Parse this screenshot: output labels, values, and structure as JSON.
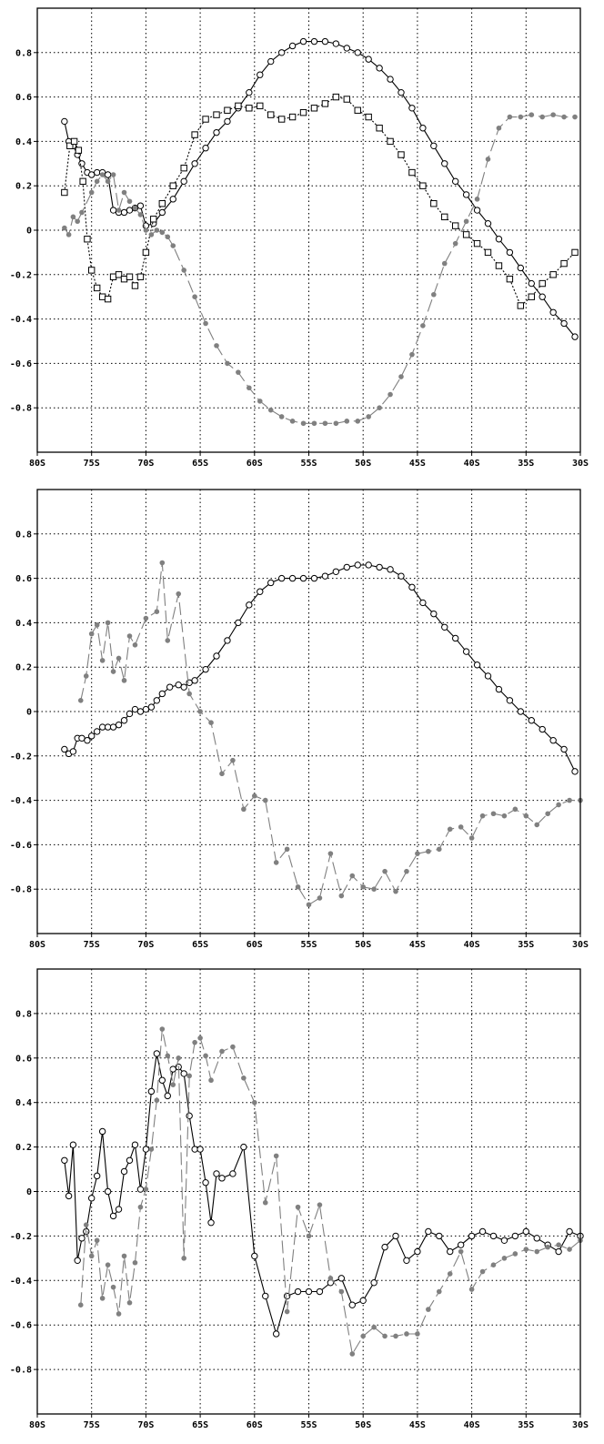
{
  "chart_data": [
    {
      "type": "line",
      "grid": true,
      "xlim": [
        -80,
        -30
      ],
      "ylim": [
        -1.0,
        1.0
      ],
      "x_ticks": [
        "80S",
        "75S",
        "70S",
        "65S",
        "60S",
        "55S",
        "50S",
        "45S",
        "40S",
        "35S",
        "30S"
      ],
      "y_ticks": [
        "0.8",
        "0.6",
        "0.4",
        "0.2",
        "0",
        "-0.2",
        "-0.4",
        "-0.6",
        "-0.8"
      ],
      "series": [
        {
          "style": "solid-open-circle",
          "color": "#000000",
          "x": [
            -77.5,
            -77.1,
            -76.7,
            -76.3,
            -75.9,
            -75.4,
            -75.0,
            -74.5,
            -74.0,
            -73.5,
            -73.0,
            -72.5,
            -72.0,
            -71.5,
            -71.0,
            -70.5,
            -70.0,
            -69.3,
            -68.5,
            -67.5,
            -66.5,
            -65.5,
            -64.5,
            -63.5,
            -62.5,
            -61.5,
            -60.5,
            -59.5,
            -58.5,
            -57.5,
            -56.5,
            -55.5,
            -54.5,
            -53.5,
            -52.5,
            -51.5,
            -50.5,
            -49.5,
            -48.5,
            -47.5,
            -46.5,
            -45.5,
            -44.5,
            -43.5,
            -42.5,
            -41.5,
            -40.5,
            -39.5,
            -38.5,
            -37.5,
            -36.5,
            -35.5,
            -34.5,
            -33.5,
            -32.5,
            -31.5,
            -30.5
          ],
          "y": [
            0.49,
            0.4,
            0.38,
            0.34,
            0.3,
            0.26,
            0.25,
            0.26,
            0.26,
            0.25,
            0.09,
            0.08,
            0.08,
            0.09,
            0.1,
            0.11,
            0.02,
            0.03,
            0.08,
            0.14,
            0.22,
            0.3,
            0.37,
            0.44,
            0.49,
            0.55,
            0.62,
            0.7,
            0.76,
            0.8,
            0.83,
            0.85,
            0.85,
            0.85,
            0.84,
            0.82,
            0.8,
            0.77,
            0.73,
            0.68,
            0.62,
            0.55,
            0.46,
            0.38,
            0.3,
            0.22,
            0.16,
            0.09,
            0.03,
            -0.04,
            -0.1,
            -0.17,
            -0.24,
            -0.3,
            -0.37,
            -0.42,
            -0.48
          ]
        },
        {
          "style": "dotted-open-square",
          "color": "#000000",
          "x": [
            -77.5,
            -77.0,
            -76.6,
            -76.2,
            -75.8,
            -75.4,
            -75.0,
            -74.5,
            -74.0,
            -73.5,
            -73.0,
            -72.5,
            -72.0,
            -71.5,
            -71.0,
            -70.5,
            -70.0,
            -69.3,
            -68.5,
            -67.5,
            -66.5,
            -65.5,
            -64.5,
            -63.5,
            -62.5,
            -61.5,
            -60.5,
            -59.5,
            -58.5,
            -57.5,
            -56.5,
            -55.5,
            -54.5,
            -53.5,
            -52.5,
            -51.5,
            -50.5,
            -49.5,
            -48.5,
            -47.5,
            -46.5,
            -45.5,
            -44.5,
            -43.5,
            -42.5,
            -41.5,
            -40.5,
            -39.5,
            -38.5,
            -37.5,
            -36.5,
            -35.5,
            -34.5,
            -33.5,
            -32.5,
            -31.5,
            -30.5
          ],
          "y": [
            0.17,
            0.38,
            0.4,
            0.36,
            0.22,
            -0.04,
            -0.18,
            -0.26,
            -0.3,
            -0.31,
            -0.21,
            -0.2,
            -0.22,
            -0.21,
            -0.25,
            -0.21,
            -0.1,
            0.05,
            0.12,
            0.2,
            0.28,
            0.43,
            0.5,
            0.52,
            0.54,
            0.56,
            0.55,
            0.56,
            0.52,
            0.5,
            0.51,
            0.53,
            0.55,
            0.57,
            0.6,
            0.59,
            0.54,
            0.51,
            0.46,
            0.4,
            0.34,
            0.26,
            0.2,
            0.12,
            0.06,
            0.02,
            -0.02,
            -0.06,
            -0.1,
            -0.16,
            -0.22,
            -0.34,
            -0.3,
            -0.24,
            -0.2,
            -0.15,
            -0.1
          ]
        },
        {
          "style": "dashed-filled-circle",
          "color": "#808080",
          "x": [
            -77.5,
            -77.1,
            -76.7,
            -76.3,
            -75.9,
            -75.0,
            -74.5,
            -74.0,
            -73.5,
            -73.0,
            -72.5,
            -72.0,
            -71.5,
            -71.0,
            -70.5,
            -70.0,
            -69.5,
            -69.0,
            -68.5,
            -68.0,
            -67.5,
            -66.5,
            -65.5,
            -64.5,
            -63.5,
            -62.5,
            -61.5,
            -60.5,
            -59.5,
            -58.5,
            -57.5,
            -56.5,
            -55.5,
            -54.5,
            -53.5,
            -52.5,
            -51.5,
            -50.5,
            -49.5,
            -48.5,
            -47.5,
            -46.5,
            -45.5,
            -44.5,
            -43.5,
            -42.5,
            -41.5,
            -40.5,
            -39.5,
            -38.5,
            -37.5,
            -36.5,
            -35.5,
            -34.5,
            -33.5,
            -32.5,
            -31.5,
            -30.5
          ],
          "y": [
            0.01,
            -0.02,
            0.06,
            0.04,
            0.08,
            0.17,
            0.22,
            0.25,
            0.22,
            0.25,
            0.09,
            0.17,
            0.13,
            0.1,
            0.07,
            0.0,
            -0.02,
            0.0,
            -0.01,
            -0.03,
            -0.07,
            -0.18,
            -0.3,
            -0.42,
            -0.52,
            -0.6,
            -0.64,
            -0.71,
            -0.77,
            -0.81,
            -0.84,
            -0.86,
            -0.87,
            -0.87,
            -0.87,
            -0.87,
            -0.86,
            -0.86,
            -0.84,
            -0.8,
            -0.74,
            -0.66,
            -0.56,
            -0.43,
            -0.29,
            -0.15,
            -0.06,
            0.04,
            0.14,
            0.32,
            0.46,
            0.51,
            0.51,
            0.52,
            0.51,
            0.52,
            0.51,
            0.51
          ]
        }
      ]
    },
    {
      "type": "line",
      "grid": true,
      "xlim": [
        -80,
        -30
      ],
      "ylim": [
        -1.0,
        1.0
      ],
      "x_ticks": [
        "80S",
        "75S",
        "70S",
        "65S",
        "60S",
        "55S",
        "50S",
        "45S",
        "40S",
        "35S",
        "30S"
      ],
      "y_ticks": [
        "0.8",
        "0.6",
        "0.4",
        "0.2",
        "0",
        "-0.2",
        "-0.4",
        "-0.6",
        "-0.8"
      ],
      "series": [
        {
          "style": "solid-open-circle",
          "color": "#000000",
          "x": [
            -77.5,
            -77.1,
            -76.7,
            -76.3,
            -75.9,
            -75.4,
            -75.0,
            -74.5,
            -74.0,
            -73.5,
            -73.0,
            -72.5,
            -72.0,
            -71.5,
            -71.0,
            -70.5,
            -70.0,
            -69.5,
            -69.0,
            -68.5,
            -67.8,
            -67.0,
            -66.5,
            -66.0,
            -65.5,
            -64.5,
            -63.5,
            -62.5,
            -61.5,
            -60.5,
            -59.5,
            -58.5,
            -57.5,
            -56.5,
            -55.5,
            -54.5,
            -53.5,
            -52.5,
            -51.5,
            -50.5,
            -49.5,
            -48.5,
            -47.5,
            -46.5,
            -45.5,
            -44.5,
            -43.5,
            -42.5,
            -41.5,
            -40.5,
            -39.5,
            -38.5,
            -37.5,
            -36.5,
            -35.5,
            -34.5,
            -33.5,
            -32.5,
            -31.5,
            -30.5
          ],
          "y": [
            -0.17,
            -0.19,
            -0.18,
            -0.12,
            -0.12,
            -0.13,
            -0.11,
            -0.09,
            -0.07,
            -0.07,
            -0.07,
            -0.06,
            -0.04,
            -0.01,
            0.01,
            0.0,
            0.01,
            0.02,
            0.05,
            0.08,
            0.11,
            0.12,
            0.11,
            0.13,
            0.14,
            0.19,
            0.25,
            0.32,
            0.4,
            0.48,
            0.54,
            0.58,
            0.6,
            0.6,
            0.6,
            0.6,
            0.61,
            0.63,
            0.65,
            0.66,
            0.66,
            0.65,
            0.64,
            0.61,
            0.56,
            0.49,
            0.44,
            0.38,
            0.33,
            0.27,
            0.21,
            0.16,
            0.1,
            0.05,
            0.0,
            -0.04,
            -0.08,
            -0.13,
            -0.17,
            -0.27
          ]
        },
        {
          "style": "dashed-filled-circle",
          "color": "#808080",
          "x": [
            -76.0,
            -75.5,
            -75.0,
            -74.5,
            -74.0,
            -73.5,
            -73.0,
            -72.5,
            -72.0,
            -71.5,
            -71.0,
            -70.0,
            -69.0,
            -68.5,
            -68.0,
            -67.0,
            -66.0,
            -65.0,
            -64.0,
            -63.0,
            -62.0,
            -61.0,
            -60.0,
            -59.0,
            -58.0,
            -57.0,
            -56.0,
            -55.0,
            -54.0,
            -53.0,
            -52.0,
            -51.0,
            -50.0,
            -49.0,
            -48.0,
            -47.0,
            -46.0,
            -45.0,
            -44.0,
            -43.0,
            -42.0,
            -41.0,
            -40.0,
            -39.0,
            -38.0,
            -37.0,
            -36.0,
            -35.0,
            -34.0,
            -33.0,
            -32.0,
            -31.0,
            -30.0
          ],
          "y": [
            0.05,
            0.16,
            0.35,
            0.39,
            0.23,
            0.4,
            0.18,
            0.24,
            0.14,
            0.34,
            0.3,
            0.42,
            0.45,
            0.67,
            0.32,
            0.53,
            0.08,
            0.0,
            -0.05,
            -0.28,
            -0.22,
            -0.44,
            -0.38,
            -0.4,
            -0.68,
            -0.62,
            -0.79,
            -0.87,
            -0.84,
            -0.64,
            -0.83,
            -0.74,
            -0.79,
            -0.8,
            -0.72,
            -0.81,
            -0.72,
            -0.64,
            -0.63,
            -0.62,
            -0.53,
            -0.52,
            -0.57,
            -0.47,
            -0.46,
            -0.47,
            -0.44,
            -0.47,
            -0.51,
            -0.46,
            -0.42,
            -0.4,
            -0.4
          ]
        }
      ]
    },
    {
      "type": "line",
      "grid": true,
      "xlim": [
        -80,
        -30
      ],
      "ylim": [
        -1.0,
        1.0
      ],
      "x_ticks": [
        "80S",
        "75S",
        "70S",
        "65S",
        "60S",
        "55S",
        "50S",
        "45S",
        "40S",
        "35S",
        "30S"
      ],
      "y_ticks": [
        "0.8",
        "0.6",
        "0.4",
        "0.2",
        "0",
        "-0.2",
        "-0.4",
        "-0.6",
        "-0.8"
      ],
      "series": [
        {
          "style": "solid-open-circle",
          "color": "#000000",
          "x": [
            -77.5,
            -77.1,
            -76.7,
            -76.3,
            -75.9,
            -75.5,
            -75.0,
            -74.5,
            -74.0,
            -73.5,
            -73.0,
            -72.5,
            -72.0,
            -71.5,
            -71.0,
            -70.5,
            -70.0,
            -69.5,
            -69.0,
            -68.5,
            -68.0,
            -67.5,
            -67.0,
            -66.5,
            -66.0,
            -65.5,
            -65.0,
            -64.5,
            -64.0,
            -63.5,
            -63.0,
            -62.0,
            -61.0,
            -60.0,
            -59.0,
            -58.0,
            -57.0,
            -56.0,
            -55.0,
            -54.0,
            -53.0,
            -52.0,
            -51.0,
            -50.0,
            -49.0,
            -48.0,
            -47.0,
            -46.0,
            -45.0,
            -44.0,
            -43.0,
            -42.0,
            -41.0,
            -40.0,
            -39.0,
            -38.0,
            -37.0,
            -36.0,
            -35.0,
            -34.0,
            -33.0,
            -32.0,
            -31.0,
            -30.0
          ],
          "y": [
            0.14,
            -0.02,
            0.21,
            -0.31,
            -0.21,
            -0.18,
            -0.03,
            0.07,
            0.27,
            0.0,
            -0.11,
            -0.08,
            0.09,
            0.14,
            0.21,
            0.01,
            0.19,
            0.45,
            0.62,
            0.5,
            0.43,
            0.55,
            0.56,
            0.53,
            0.34,
            0.19,
            0.19,
            0.04,
            -0.14,
            0.08,
            0.06,
            0.08,
            0.2,
            -0.29,
            -0.47,
            -0.64,
            -0.47,
            -0.45,
            -0.45,
            -0.45,
            -0.41,
            -0.39,
            -0.51,
            -0.49,
            -0.41,
            -0.25,
            -0.2,
            -0.31,
            -0.27,
            -0.18,
            -0.2,
            -0.27,
            -0.24,
            -0.2,
            -0.18,
            -0.2,
            -0.22,
            -0.2,
            -0.18,
            -0.21,
            -0.24,
            -0.27,
            -0.18,
            -0.2
          ]
        },
        {
          "style": "dashed-filled-circle",
          "color": "#808080",
          "x": [
            -76.0,
            -75.5,
            -75.0,
            -74.5,
            -74.0,
            -73.5,
            -73.0,
            -72.5,
            -72.0,
            -71.5,
            -71.0,
            -70.5,
            -70.0,
            -69.5,
            -69.0,
            -68.5,
            -68.0,
            -67.5,
            -67.0,
            -66.5,
            -66.0,
            -65.5,
            -65.0,
            -64.5,
            -64.0,
            -63.0,
            -62.0,
            -61.0,
            -60.0,
            -59.0,
            -58.0,
            -57.0,
            -56.0,
            -55.0,
            -54.0,
            -53.0,
            -52.0,
            -51.0,
            -50.0,
            -49.0,
            -48.0,
            -47.0,
            -46.0,
            -45.0,
            -44.0,
            -43.0,
            -42.0,
            -41.0,
            -40.0,
            -39.0,
            -38.0,
            -37.0,
            -36.0,
            -35.0,
            -34.0,
            -33.0,
            -32.0,
            -31.0,
            -30.0
          ],
          "y": [
            -0.51,
            -0.15,
            -0.29,
            -0.22,
            -0.48,
            -0.33,
            -0.43,
            -0.55,
            -0.29,
            -0.5,
            -0.32,
            -0.07,
            0.01,
            0.19,
            0.41,
            0.73,
            0.61,
            0.48,
            0.6,
            -0.3,
            0.52,
            0.67,
            0.69,
            0.61,
            0.5,
            0.63,
            0.65,
            0.51,
            0.4,
            -0.05,
            0.16,
            -0.54,
            -0.07,
            -0.2,
            -0.06,
            -0.39,
            -0.45,
            -0.73,
            -0.65,
            -0.61,
            -0.65,
            -0.65,
            -0.64,
            -0.64,
            -0.53,
            -0.45,
            -0.37,
            -0.27,
            -0.44,
            -0.36,
            -0.33,
            -0.3,
            -0.28,
            -0.26,
            -0.27,
            -0.25,
            -0.24,
            -0.26,
            -0.22
          ]
        }
      ]
    }
  ]
}
